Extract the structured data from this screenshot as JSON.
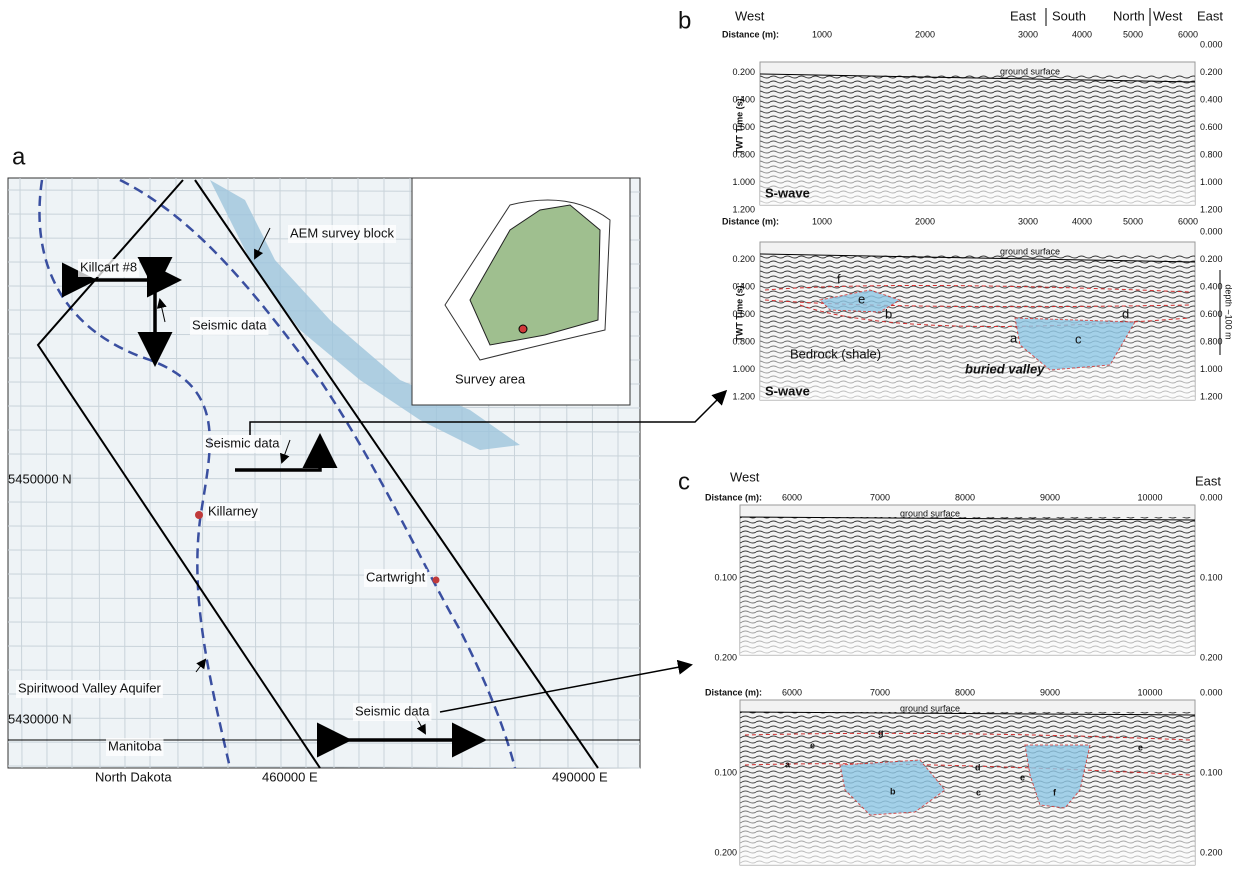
{
  "panel_a": {
    "label": "a",
    "map_labels": {
      "aem": "AEM survey block",
      "killcart": "Killcart #8",
      "seismic_1": "Seismic data",
      "seismic_2": "Seismic data",
      "seismic_3": "Seismic data",
      "killarney": "Killarney",
      "cartwright": "Cartwright",
      "aquifer": "Spiritwood Valley Aquifer",
      "manitoba": "Manitoba",
      "north_dakota": "North Dakota",
      "survey_area": "Survey area"
    },
    "northings": [
      "5450000 N",
      "5430000 N"
    ],
    "eastings": [
      "460000 E",
      "490000 E"
    ]
  },
  "panel_b": {
    "label": "b",
    "directions": [
      "West",
      "East",
      "South",
      "North",
      "West",
      "East"
    ],
    "distance_label": "Distance (m):",
    "time_label": "TWT Time (s):",
    "distance_ticks": [
      "1000",
      "2000",
      "3000",
      "4000",
      "5000",
      "6000"
    ],
    "time_ticks": [
      "0.000",
      "0.200",
      "0.400",
      "0.600",
      "0.800",
      "1.000",
      "1.200"
    ],
    "wave": "S-wave",
    "ground": "ground surface",
    "units": [
      "a",
      "b",
      "c",
      "d",
      "e",
      "f"
    ],
    "bedrock": "Bedrock (shale)",
    "valley": "buried valley",
    "depth": "depth ~100 m"
  },
  "panel_c": {
    "label": "c",
    "directions": [
      "West",
      "East"
    ],
    "distance_label": "Distance (m):",
    "distance_ticks": [
      "6000",
      "7000",
      "8000",
      "9000",
      "10000"
    ],
    "time_ticks": [
      "0.000",
      "0.100",
      "0.200"
    ],
    "ground": "ground surface",
    "units": [
      "a",
      "b",
      "c",
      "d",
      "e",
      "f",
      "g"
    ]
  }
}
